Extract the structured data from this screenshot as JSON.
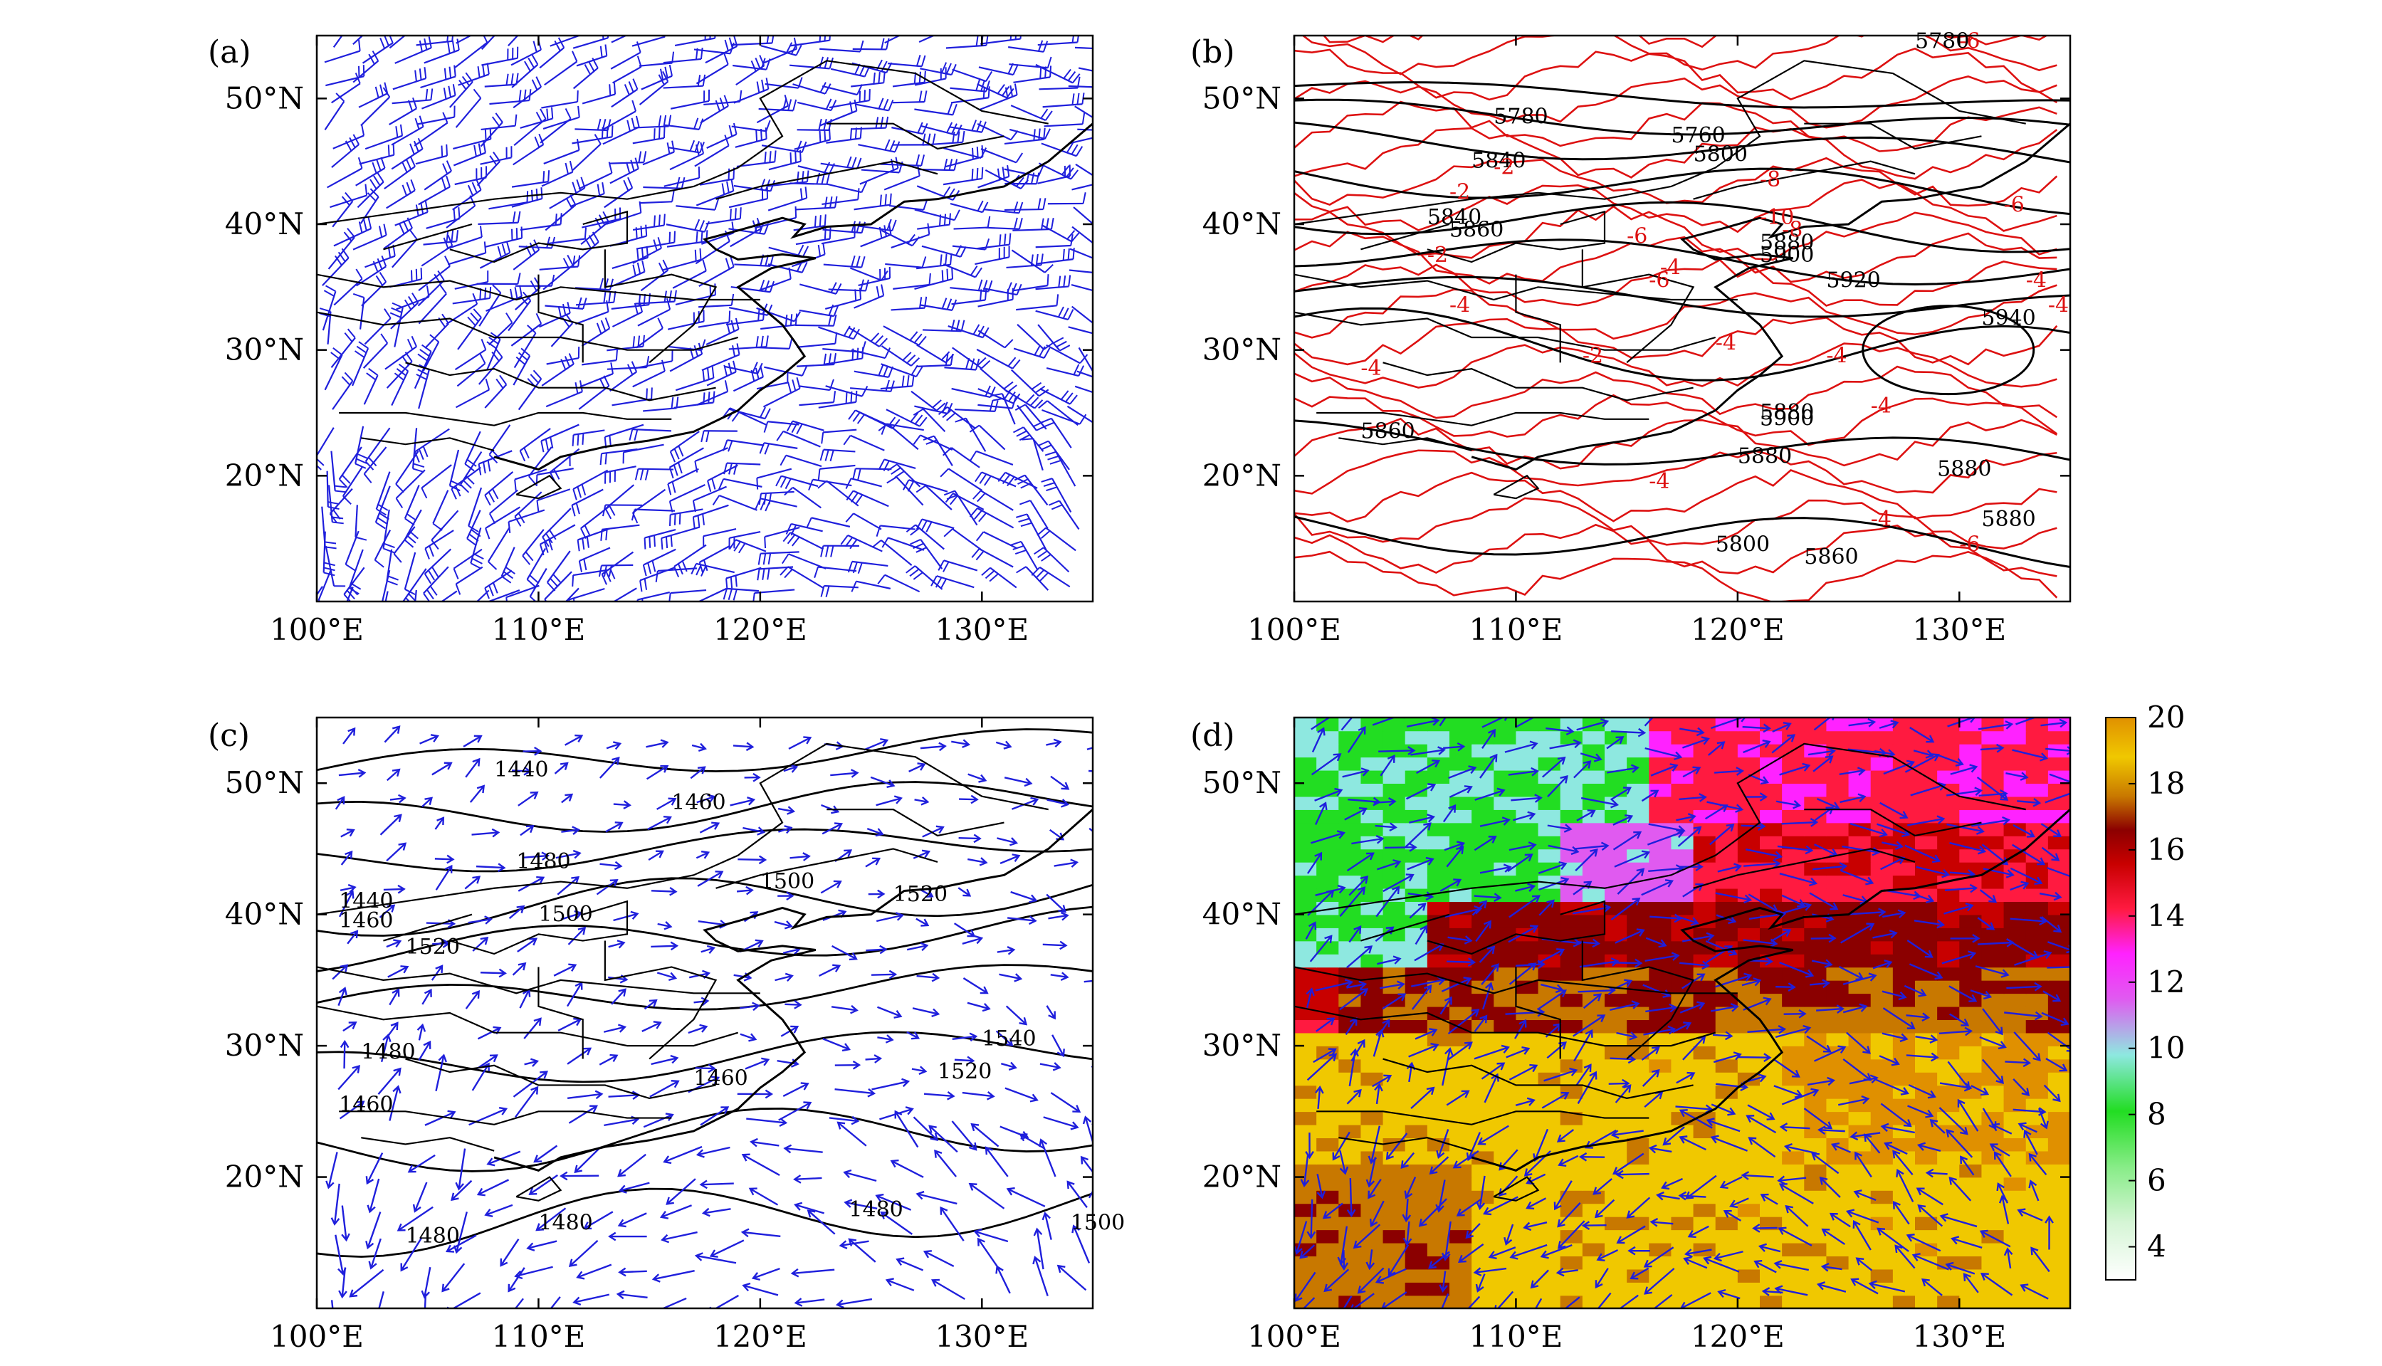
{
  "panels": [
    {
      "tag": "(a)",
      "field": "wind-barbs"
    },
    {
      "tag": "(b)",
      "field": "geopotential-height-and-temperature-contours"
    },
    {
      "tag": "(c)",
      "field": "height-contours-and-wind-vectors"
    },
    {
      "tag": "(d)",
      "field": "shaded-field-and-wind-vectors"
    }
  ],
  "axes": {
    "lon_range": [
      100,
      135
    ],
    "lat_range": [
      10,
      55
    ],
    "lon_ticks": [
      "100°E",
      "110°E",
      "120°E",
      "130°E"
    ],
    "lat_ticks": [
      "20°N",
      "30°N",
      "40°N",
      "50°N"
    ]
  },
  "panel_b_labels": {
    "black": [
      "5780",
      "5760",
      "5800",
      "5840",
      "5860",
      "5880",
      "5900",
      "5920",
      "5940",
      "5860",
      "5880",
      "5880",
      "5900",
      "5880",
      "5880",
      "5860",
      "5800",
      "5840",
      "5780"
    ],
    "red": [
      "-6",
      "-2",
      "-6",
      "-4",
      "-2",
      "-4",
      "-6",
      "-2",
      "-4",
      "-4",
      "-4",
      "-4",
      "-4",
      "-4",
      "-4",
      "-6",
      "-2",
      "-4",
      "-8",
      "-10",
      "-6",
      "-8"
    ]
  },
  "panel_c_labels": [
    "1440",
    "1460",
    "1480",
    "1500",
    "1520",
    "1540",
    "1520",
    "1500",
    "1480",
    "1460",
    "1440",
    "1460",
    "1480",
    "1500",
    "1480",
    "1460",
    "1480",
    "1520"
  ],
  "colorbar": {
    "ticks": [
      "4",
      "6",
      "8",
      "10",
      "12",
      "14",
      "16",
      "18",
      "20"
    ],
    "range": [
      3,
      20
    ],
    "colors": [
      "#ffffff",
      "#d6f5d6",
      "#88ec88",
      "#22dd22",
      "#8ee8e0",
      "#e05af0",
      "#ff22ff",
      "#ff1a40",
      "#c80000",
      "#8b0000",
      "#c87800",
      "#f0c800",
      "#e09000"
    ]
  },
  "colors": {
    "wind": "#1f1fdc",
    "temperature_contour": "#dd1111",
    "height_contour": "#000000"
  }
}
